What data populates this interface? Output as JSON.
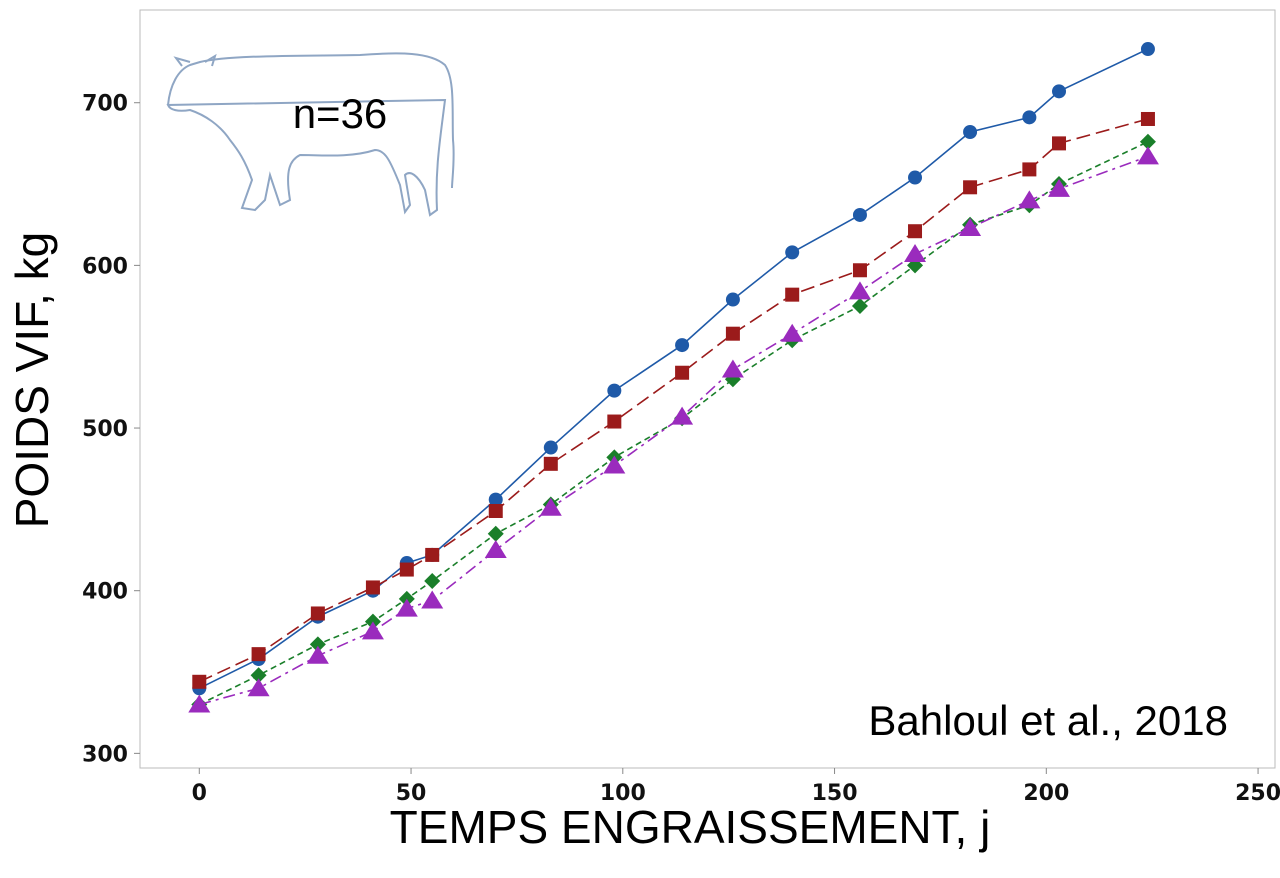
{
  "chart_data": {
    "type": "line",
    "x_label": "TEMPS ENGRAISSEMENT, j",
    "y_label": "POIDS VIF, kg",
    "annotations": [
      "n=36",
      "Bahloul et al., 2018"
    ],
    "x": [
      0,
      14,
      28,
      41,
      49,
      55,
      70,
      83,
      98,
      114,
      126,
      140,
      156,
      169,
      182,
      196,
      203,
      224
    ],
    "series": [
      {
        "color": "#1f5aa8",
        "marker": "circle",
        "dash": "solid",
        "values": [
          340,
          358,
          384,
          400,
          417,
          422,
          456,
          488,
          523,
          551,
          579,
          608,
          631,
          654,
          682,
          691,
          707,
          733
        ]
      },
      {
        "color": "#9b1b1b",
        "marker": "square",
        "dash": "long",
        "values": [
          344,
          361,
          386,
          402,
          413,
          422,
          449,
          478,
          504,
          534,
          558,
          582,
          597,
          621,
          648,
          659,
          675,
          690
        ]
      },
      {
        "color": "#1a7f2a",
        "marker": "diamond",
        "dash": "short",
        "values": [
          330,
          348,
          367,
          381,
          395,
          406,
          435,
          453,
          482,
          506,
          530,
          554,
          575,
          600,
          625,
          637,
          650,
          676
        ]
      },
      {
        "color": "#9a2bbd",
        "marker": "triangle",
        "dash": "dashdot",
        "values": [
          330,
          340,
          360,
          375,
          389,
          394,
          425,
          451,
          477,
          507,
          536,
          558,
          584,
          607,
          623,
          640,
          647,
          667
        ]
      }
    ],
    "xlim": [
      -14,
      254
    ],
    "ylim": [
      291,
      757
    ],
    "xticks": [
      0,
      50,
      100,
      150,
      200,
      250
    ],
    "yticks": [
      300,
      400,
      500,
      600,
      700
    ]
  }
}
